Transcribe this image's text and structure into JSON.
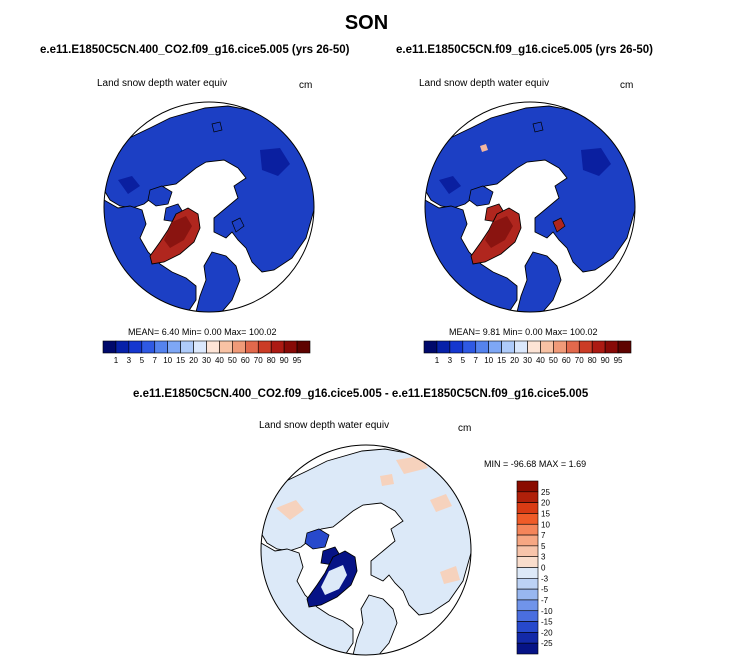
{
  "season": "SON",
  "colors": {
    "land_blue": "#1c3fc4",
    "land_blue_dark": "#0a1fa0",
    "greenland_red": "#b0261e",
    "diff_light": "#dce9f8",
    "diff_peach": "#f6d2bd"
  },
  "chart_data": [
    {
      "type": "heatmap",
      "projection": "north-polar-stereographic",
      "title": "e.e11.E1850C5CN.400_CO2.f09_g16.cice5.005 (yrs 26-50)",
      "variable": "Land snow depth water equiv",
      "units": "cm",
      "stats": {
        "mean_label": "MEAN=",
        "mean": "6.40",
        "min_label": "Min=",
        "min": "0.00",
        "max_label": "Max=",
        "max": "100.02"
      },
      "colorbar": {
        "orientation": "horizontal",
        "ticks": [
          "1",
          "3",
          "5",
          "7",
          "10",
          "15",
          "20",
          "30",
          "40",
          "50",
          "60",
          "70",
          "80",
          "90",
          "95"
        ],
        "colors": [
          "#00096b",
          "#0721a9",
          "#1537cf",
          "#2f59e3",
          "#5583ee",
          "#7ea7f5",
          "#aecbfa",
          "#dbe8fc",
          "#fde4d6",
          "#f8c2a4",
          "#f09a78",
          "#e2694c",
          "#cb3c26",
          "#ac1a13",
          "#880a07",
          "#5e0300"
        ]
      }
    },
    {
      "type": "heatmap",
      "projection": "north-polar-stereographic",
      "title": "e.e11.E1850C5CN.f09_g16.cice5.005 (yrs 26-50)",
      "variable": "Land snow depth water equiv",
      "units": "cm",
      "stats": {
        "mean_label": "MEAN=",
        "mean": "9.81",
        "min_label": "Min=",
        "min": "0.00",
        "max_label": "Max=",
        "max": "100.02"
      },
      "colorbar": {
        "orientation": "horizontal",
        "ticks": [
          "1",
          "3",
          "5",
          "7",
          "10",
          "15",
          "20",
          "30",
          "40",
          "50",
          "60",
          "70",
          "80",
          "90",
          "95"
        ],
        "colors": [
          "#00096b",
          "#0721a9",
          "#1537cf",
          "#2f59e3",
          "#5583ee",
          "#7ea7f5",
          "#aecbfa",
          "#dbe8fc",
          "#fde4d6",
          "#f8c2a4",
          "#f09a78",
          "#e2694c",
          "#cb3c26",
          "#ac1a13",
          "#880a07",
          "#5e0300"
        ]
      }
    },
    {
      "type": "heatmap",
      "projection": "north-polar-stereographic",
      "title": "e.e11.E1850C5CN.400_CO2.f09_g16.cice5.005 - e.e11.E1850C5CN.f09_g16.cice5.005",
      "variable": "Land snow depth water equiv",
      "units": "cm",
      "stats": {
        "min_label": "MIN =",
        "min": "-96.68",
        "max_label": "MAX =",
        "max": "1.69"
      },
      "colorbar": {
        "orientation": "vertical",
        "ticks": [
          "25",
          "20",
          "15",
          "10",
          "7",
          "5",
          "3",
          "0",
          "-3",
          "-5",
          "-7",
          "-10",
          "-15",
          "-20",
          "-25"
        ],
        "colors": [
          "#8a0c00",
          "#b0200a",
          "#d93b14",
          "#ef5b28",
          "#f4855a",
          "#f6a783",
          "#f7c4aa",
          "#f9ddcc",
          "#dde9f8",
          "#bcd2f5",
          "#98b7f0",
          "#7094ea",
          "#4a6edf",
          "#2749cc",
          "#1329a8",
          "#061386"
        ]
      }
    }
  ]
}
